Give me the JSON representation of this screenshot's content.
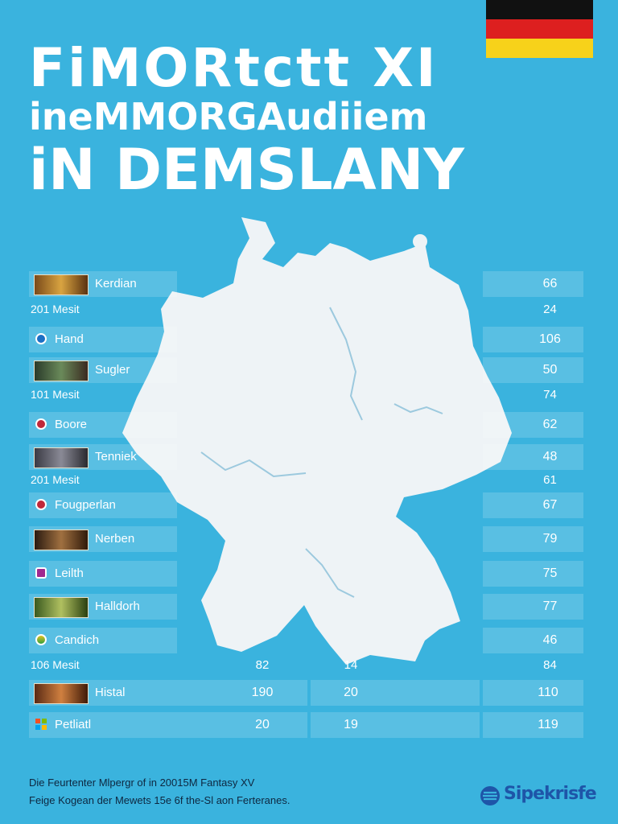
{
  "header": {
    "title_line1": "FiMORtctt XI",
    "title_line2": "ineMMORGAudiiem",
    "title_line3": "iN DEMSLANY"
  },
  "flag": {
    "colors": [
      "#111111",
      "#dd1f1f",
      "#f7d21a"
    ]
  },
  "rows": [
    {
      "name": "Kerdian",
      "icon": "game-thumbnail",
      "value": "66"
    },
    {
      "name": "Hand",
      "icon": "circle-icon",
      "value": "106"
    },
    {
      "name": "Sugler",
      "icon": "game-thumbnail",
      "value": "50"
    },
    {
      "name": "Boore",
      "icon": "circle-icon",
      "value": "62"
    },
    {
      "name": "Tenniek",
      "icon": "game-thumbnail",
      "value": "48"
    },
    {
      "name": "Fougperlan",
      "icon": "circle-icon",
      "value": "67"
    },
    {
      "name": "Nerben",
      "icon": "game-thumbnail",
      "value": "79"
    },
    {
      "name": "Leilth",
      "icon": "circle-icon",
      "value": "75"
    },
    {
      "name": "Halldorh",
      "icon": "game-thumbnail",
      "value": "77"
    },
    {
      "name": "Candich",
      "icon": "circle-icon",
      "value": "46"
    },
    {
      "name": "Histal",
      "icon": "game-thumbnail",
      "values": [
        "190",
        "20",
        "110"
      ]
    },
    {
      "name": "Petliatl",
      "icon": "windows-icon",
      "values": [
        "20",
        "19",
        "119"
      ]
    }
  ],
  "subrows": [
    {
      "label": "201 Mesit",
      "value": "24"
    },
    {
      "label": "101 Mesit",
      "value": "74"
    },
    {
      "label": "201 Mesit",
      "value": "61"
    },
    {
      "label": "106 Mesit",
      "values": [
        "82",
        "14",
        "84"
      ]
    }
  ],
  "footer": {
    "line1": "Die Feurtenter Mlpergr of in 20015M Fantasy XV",
    "line2": "Feige Kogean der Mewets 15e 6f the-Sl aon Ferteranes.",
    "brand": "Sipekrisfe"
  },
  "colors": {
    "background": "#3ab3de",
    "map": "#eef3f6",
    "brand": "#1e55a8"
  }
}
